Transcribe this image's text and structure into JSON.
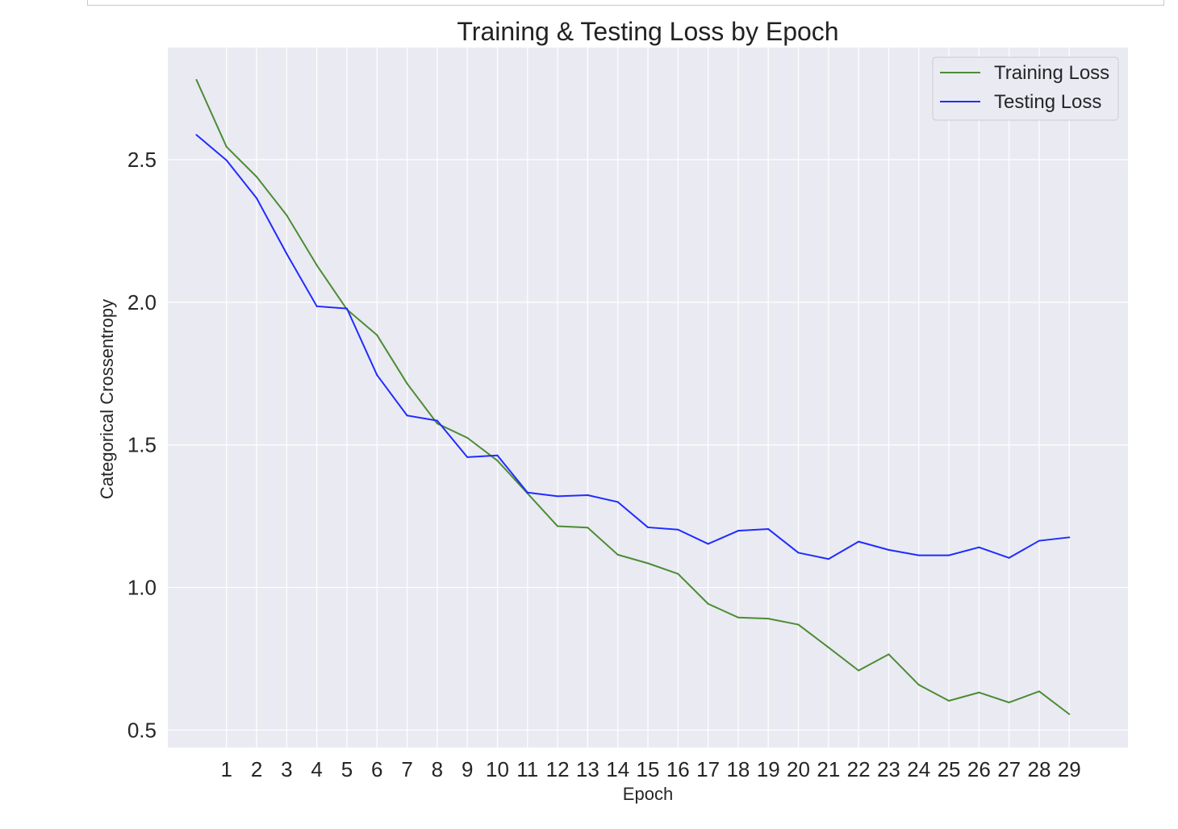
{
  "chart_data": {
    "type": "line",
    "title": "Training & Testing Loss by Epoch",
    "xlabel": "Epoch",
    "ylabel": "Categorical Crossentropy",
    "xlim": [
      -0.95,
      30.95
    ],
    "ylim": [
      0.439,
      2.893
    ],
    "x": [
      0,
      1,
      2,
      3,
      4,
      5,
      6,
      7,
      8,
      9,
      10,
      11,
      12,
      13,
      14,
      15,
      16,
      17,
      18,
      19,
      20,
      21,
      22,
      23,
      24,
      25,
      26,
      27,
      28,
      29
    ],
    "x_tick_labels": [
      "1",
      "2",
      "3",
      "4",
      "5",
      "6",
      "7",
      "8",
      "9",
      "10",
      "11",
      "12",
      "13",
      "14",
      "15",
      "16",
      "17",
      "18",
      "19",
      "20",
      "21",
      "22",
      "23",
      "24",
      "25",
      "26",
      "27",
      "28",
      "29"
    ],
    "y_ticks": [
      0.5,
      1.0,
      1.5,
      2.0,
      2.5
    ],
    "y_tick_labels": [
      "0.5",
      "1.0",
      "1.5",
      "2.0",
      "2.5"
    ],
    "grid": true,
    "legend_position": "top-right",
    "series": [
      {
        "name": "Training Loss",
        "color": "#4c8c34",
        "values": [
          2.78,
          2.545,
          2.44,
          2.305,
          2.13,
          1.975,
          1.885,
          1.715,
          1.575,
          1.525,
          1.445,
          1.33,
          1.215,
          1.21,
          1.115,
          1.085,
          1.048,
          0.943,
          0.895,
          0.891,
          0.87,
          0.79,
          0.709,
          0.766,
          0.659,
          0.603,
          0.632,
          0.597,
          0.636,
          0.556
        ]
      },
      {
        "name": "Testing Loss",
        "color": "#1f2cff",
        "values": [
          2.587,
          2.498,
          2.365,
          2.17,
          1.986,
          1.978,
          1.745,
          1.603,
          1.585,
          1.457,
          1.463,
          1.333,
          1.32,
          1.324,
          1.3,
          1.211,
          1.203,
          1.153,
          1.199,
          1.205,
          1.122,
          1.1,
          1.161,
          1.132,
          1.113,
          1.113,
          1.141,
          1.104,
          1.164,
          1.176
        ]
      }
    ]
  }
}
